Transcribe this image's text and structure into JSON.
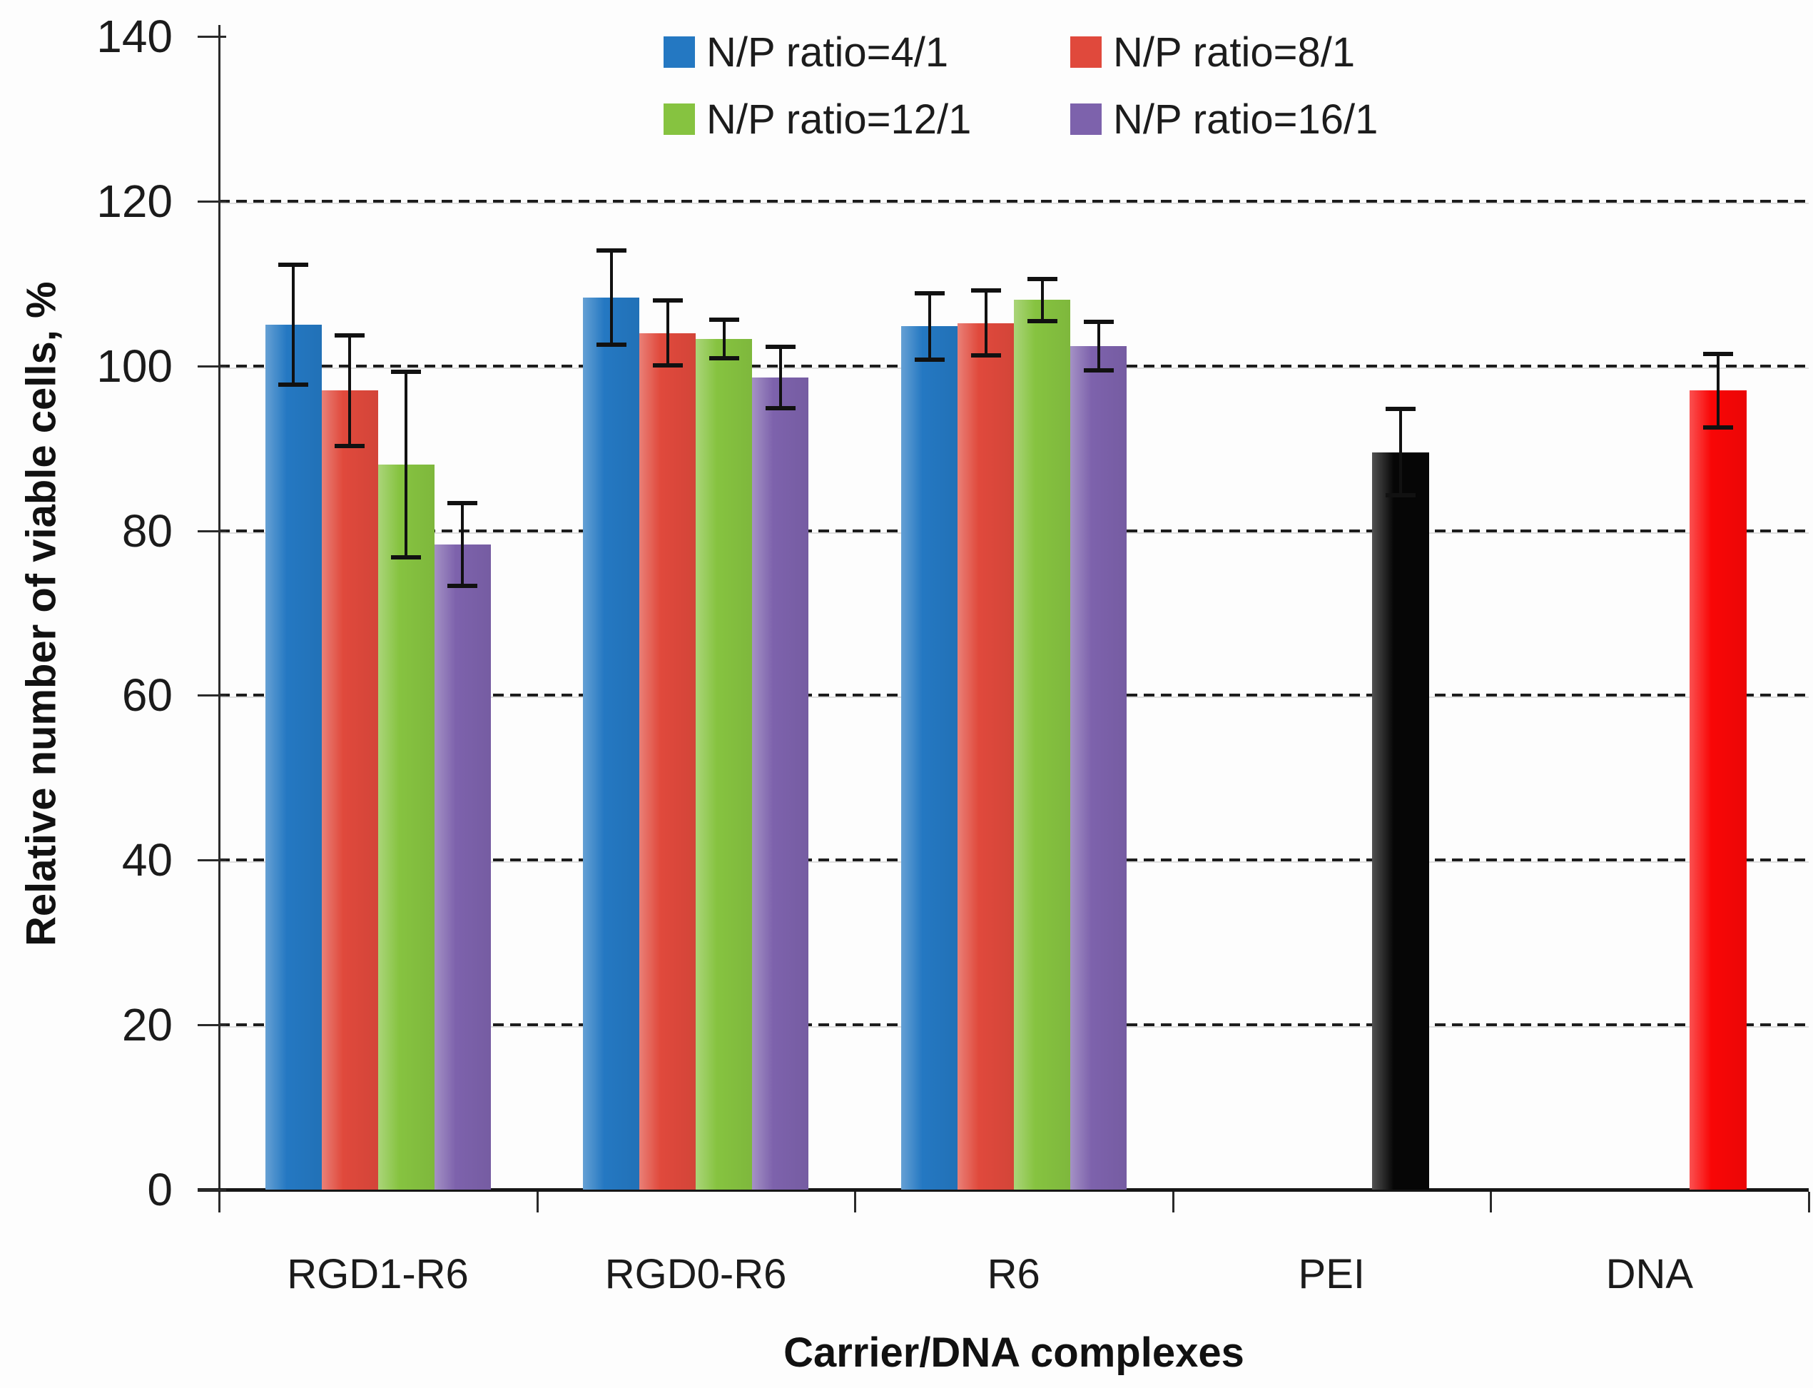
{
  "chart_data": {
    "type": "bar",
    "title": "",
    "xlabel": "Carrier/DNA complexes",
    "ylabel": "Relative number of viable cells, %",
    "ylim": [
      0,
      140
    ],
    "ytick_step": 20,
    "grid": "dashed-horizontal",
    "legend_position": "top-center",
    "categories": [
      "RGD1-R6",
      "RGD0-R6",
      "R6",
      "PEI",
      "DNA"
    ],
    "series": [
      {
        "name": "N/P ratio=4/1",
        "color": "#2478C2",
        "values": [
          105.0,
          108.3,
          104.8,
          null,
          null
        ],
        "errors": [
          7.5,
          6.0,
          4.3,
          null,
          null
        ]
      },
      {
        "name": "N/P ratio=8/1",
        "color": "#E0493C",
        "values": [
          97.0,
          104.0,
          105.2,
          null,
          null
        ],
        "errors": [
          7.0,
          4.2,
          4.2,
          null,
          null
        ]
      },
      {
        "name": "N/P ratio=12/1",
        "color": "#86C340",
        "values": [
          88.0,
          103.3,
          108.0,
          null,
          null
        ],
        "errors": [
          11.5,
          2.6,
          2.8,
          null,
          null
        ]
      },
      {
        "name": "N/P ratio=16/1",
        "color": "#7D62AC",
        "values": [
          78.3,
          98.6,
          102.4,
          null,
          null
        ],
        "errors": [
          5.3,
          4.0,
          3.2,
          null,
          null
        ]
      }
    ],
    "single_bars": [
      {
        "category": "PEI",
        "value": 89.5,
        "error": 5.5,
        "color": "#060606"
      },
      {
        "category": "DNA",
        "value": 97.0,
        "error": 4.7,
        "color": "#F90606"
      }
    ],
    "axis_color": "#2a2a2a",
    "gridline_color": "#1d1d1d"
  }
}
